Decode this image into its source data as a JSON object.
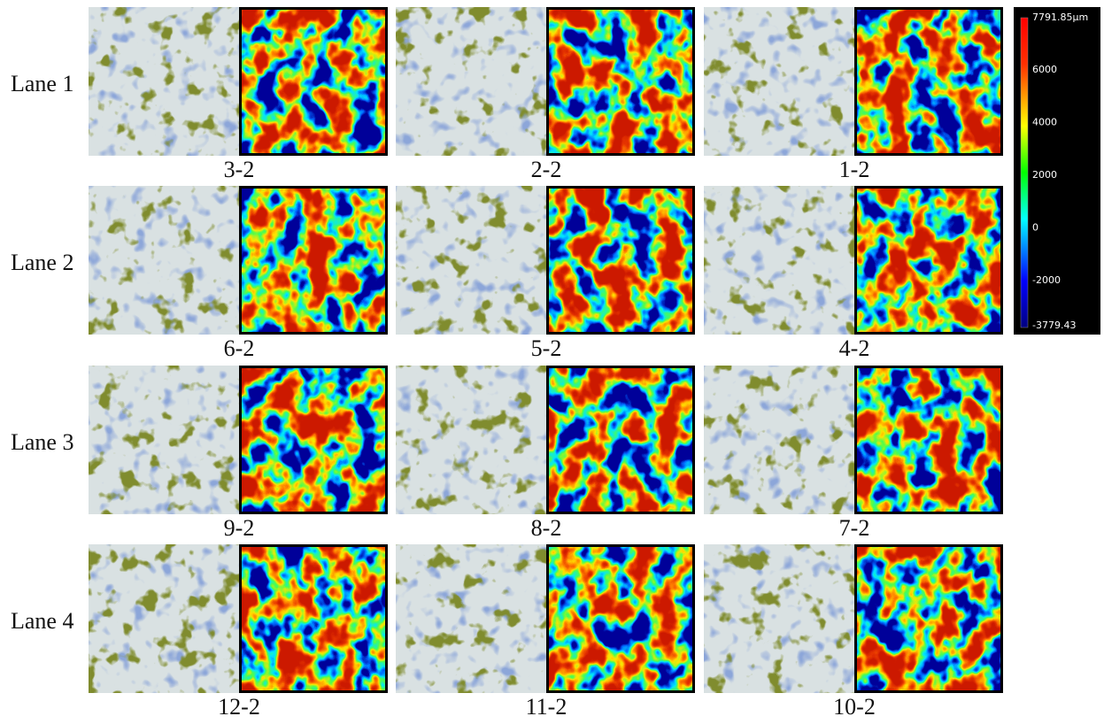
{
  "lanes": [
    "Lane 1",
    "Lane 2",
    "Lane 3",
    "Lane 4"
  ],
  "panels": [
    [
      "3-2",
      "2-2",
      "1-2"
    ],
    [
      "6-2",
      "5-2",
      "4-2"
    ],
    [
      "9-2",
      "8-2",
      "7-2"
    ],
    [
      "12-2",
      "11-2",
      "10-2"
    ]
  ],
  "colorbar": {
    "max": "7791.85µm",
    "ticks": [
      "6000",
      "4000",
      "2000",
      "0",
      "-2000"
    ],
    "min": "-3779.43"
  }
}
